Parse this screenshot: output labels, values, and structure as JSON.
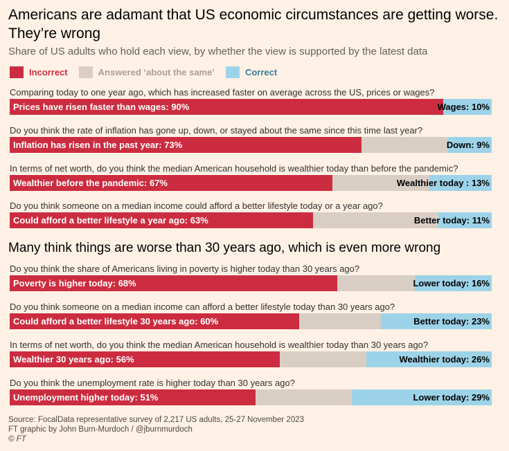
{
  "title": "Americans are adamant that US economic circumstances are getting worse. They’re wrong",
  "subtitle": "Share of US adults who hold each view, by whether the view is supported by the latest data",
  "colors": {
    "incorrect": "#cc2c3f",
    "same": "#d9cec4",
    "correct": "#9dd3e8",
    "background": "#fff1e5"
  },
  "legend": [
    {
      "label": "Incorrect",
      "color": "#cc2c3f",
      "text_color": "#cc2c3f"
    },
    {
      "label": "Answered ‘about the same’",
      "color": "#d9cec4",
      "text_color": "#a89f98"
    },
    {
      "label": "Correct",
      "color": "#9dd3e8",
      "text_color": "#3b7c95"
    }
  ],
  "section_heading": "Many think things are worse than 30 years ago, which is even more wrong",
  "chart_data": {
    "type": "bar",
    "orientation": "horizontal-stacked",
    "xlim": [
      0,
      100
    ],
    "series_order": [
      "incorrect",
      "same",
      "correct"
    ],
    "rows": [
      {
        "question": "Comparing today to one year ago, which has increased faster on average across the US, prices or wages?",
        "incorrect": 90,
        "same": 0,
        "correct": 10,
        "incorrect_label": "Prices have risen faster than wages: 90%",
        "correct_label": "Wages: 10%"
      },
      {
        "question": "Do you think the rate of inflation has gone up, down, or stayed about the same since this time last year?",
        "incorrect": 73,
        "same": 18,
        "correct": 9,
        "incorrect_label": "Inflation has risen in the past year: 73%",
        "correct_label": "Down: 9%"
      },
      {
        "question": "In terms of net worth, do you think the median American household is wealthier today than before the pandemic?",
        "incorrect": 67,
        "same": 20,
        "correct": 13,
        "incorrect_label": "Wealthier before the pandemic: 67%",
        "correct_label": "Wealthier today : 13%"
      },
      {
        "question": "Do you think someone on a median income could afford a better lifestyle today or a year ago?",
        "incorrect": 63,
        "same": 26,
        "correct": 11,
        "incorrect_label": "Could afford a better lifestyle a year ago: 63%",
        "correct_label": "Better today: 11%"
      },
      {
        "question": "Do you think the share of Americans living in poverty is higher today than 30 years ago?",
        "incorrect": 68,
        "same": 16,
        "correct": 16,
        "incorrect_label": "Poverty is higher today: 68%",
        "correct_label": "Lower today: 16%"
      },
      {
        "question": "Do you think someone on a median income can afford a better lifestyle today than 30 years ago?",
        "incorrect": 60,
        "same": 17,
        "correct": 23,
        "incorrect_label": "Could afford a better lifestyle 30 years ago: 60%",
        "correct_label": "Better today: 23%"
      },
      {
        "question": "In terms of net worth, do you think the median American household is wealthier today than 30 years ago?",
        "incorrect": 56,
        "same": 18,
        "correct": 26,
        "incorrect_label": "Wealthier 30 years ago: 56%",
        "correct_label": "Wealthier today: 26%"
      },
      {
        "question": "Do you think the unemployment rate is higher today than 30 years ago?",
        "incorrect": 51,
        "same": 20,
        "correct": 29,
        "incorrect_label": "Unemployment higher today: 51%",
        "correct_label": "Lower today: 29%"
      }
    ]
  },
  "footer": {
    "source": "Source: FocalData representative survey of 2,217 US adults, 25-27 November 2023",
    "credit": "FT graphic by John Burn-Murdoch / @jburnmurdoch",
    "copyright": "© FT"
  }
}
